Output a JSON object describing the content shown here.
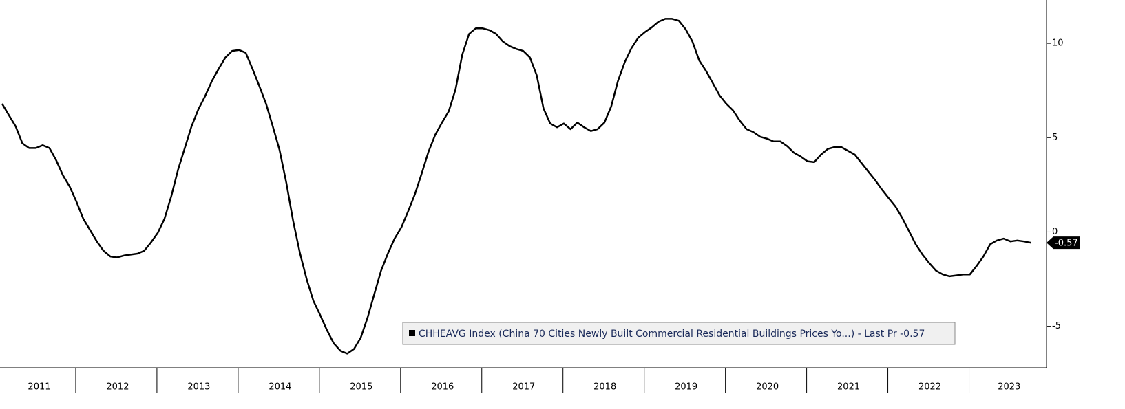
{
  "chart_data": {
    "type": "line",
    "legend": "CHHEAVG Index (China 70 Cities Newly Built Commercial Residential Buildings Prices Yo...) - Last Pr -0.57",
    "color": "#000000",
    "categories": [
      "2011",
      null,
      null,
      null,
      null,
      null,
      null,
      null,
      null,
      null,
      null,
      null,
      "2012",
      null,
      null,
      null,
      null,
      null,
      null,
      null,
      null,
      null,
      null,
      null,
      "2013",
      null,
      null,
      null,
      null,
      null,
      null,
      null,
      null,
      null,
      null,
      null,
      "2014",
      null,
      null,
      null,
      null,
      null,
      null,
      null,
      null,
      null,
      null,
      null,
      "2015",
      null,
      null,
      null,
      null,
      null,
      null,
      null,
      null,
      null,
      null,
      null,
      "2016",
      null,
      null,
      null,
      null,
      null,
      null,
      null,
      null,
      null,
      null,
      null,
      "2017",
      null,
      null,
      null,
      null,
      null,
      null,
      null,
      null,
      null,
      null,
      null,
      "2018",
      null,
      null,
      null,
      null,
      null,
      null,
      null,
      null,
      null,
      null,
      null,
      "2019",
      null,
      null,
      null,
      null,
      null,
      null,
      null,
      null,
      null,
      null,
      null,
      "2020",
      null,
      null,
      null,
      null,
      null,
      null,
      null,
      null,
      null,
      null,
      null,
      "2021",
      null,
      null,
      null,
      null,
      null,
      null,
      null,
      null,
      null,
      null,
      null,
      "2022",
      null,
      null,
      null,
      null,
      null,
      null,
      null,
      null,
      null,
      null,
      null,
      "2023",
      null,
      null,
      null,
      null,
      null,
      null,
      null,
      null
    ],
    "values": [
      6.8,
      6.2,
      5.6,
      4.7,
      4.45,
      4.45,
      4.6,
      4.45,
      3.8,
      3.0,
      2.4,
      1.6,
      0.7,
      0.1,
      -0.5,
      -1.0,
      -1.3,
      -1.35,
      -1.25,
      -1.2,
      -1.15,
      -1.0,
      -0.55,
      -0.05,
      0.7,
      1.9,
      3.3,
      4.45,
      5.6,
      6.5,
      7.2,
      8.0,
      8.65,
      9.25,
      9.6,
      9.65,
      9.5,
      8.65,
      7.75,
      6.8,
      5.6,
      4.35,
      2.6,
      0.6,
      -1.1,
      -2.5,
      -3.65,
      -4.4,
      -5.2,
      -5.9,
      -6.3,
      -6.45,
      -6.2,
      -5.6,
      -4.55,
      -3.3,
      -2.05,
      -1.15,
      -0.35,
      0.25,
      1.1,
      2.0,
      3.1,
      4.25,
      5.15,
      5.8,
      6.4,
      7.55,
      9.4,
      10.5,
      10.8,
      10.8,
      10.7,
      10.5,
      10.1,
      9.85,
      9.7,
      9.6,
      9.25,
      8.3,
      6.55,
      5.75,
      5.55,
      5.75,
      5.45,
      5.8,
      5.55,
      5.35,
      5.45,
      5.8,
      6.65,
      8.0,
      9.0,
      9.75,
      10.3,
      10.6,
      10.85,
      11.15,
      11.3,
      11.3,
      11.2,
      10.75,
      10.1,
      9.1,
      8.55,
      7.9,
      7.25,
      6.8,
      6.45,
      5.9,
      5.45,
      5.3,
      5.05,
      4.95,
      4.8,
      4.8,
      4.55,
      4.2,
      4.0,
      3.75,
      3.7,
      4.1,
      4.4,
      4.5,
      4.5,
      4.3,
      4.1,
      3.65,
      3.2,
      2.75,
      2.25,
      1.8,
      1.35,
      0.75,
      0.05,
      -0.65,
      -1.2,
      -1.65,
      -2.05,
      -2.25,
      -2.35,
      -2.3,
      -2.25,
      -2.25,
      -1.8,
      -1.3,
      -0.65,
      -0.45,
      -0.35,
      -0.5,
      -0.45,
      -0.5,
      -0.57
    ],
    "ylim": [
      -7.2,
      12.3
    ],
    "yticks": [
      -5,
      0,
      5,
      10
    ],
    "grid": false
  }
}
